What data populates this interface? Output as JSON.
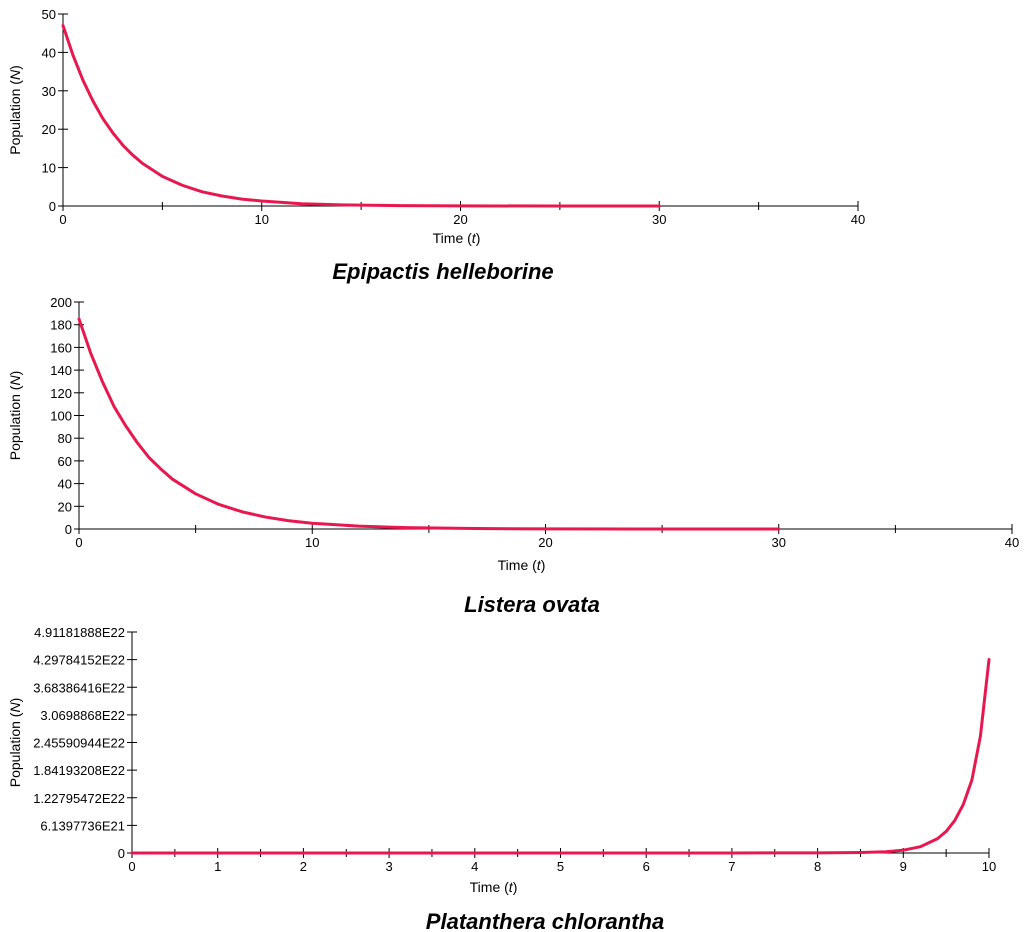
{
  "chart_data": [
    {
      "type": "line",
      "title": "Epipactis helleborine",
      "xlabel": "Time (t)",
      "xlabel_prefix": "Time (",
      "xlabel_var": "t",
      "xlabel_suffix": ")",
      "ylabel": "Population (N)",
      "ylabel_prefix": "Population (",
      "ylabel_var": "N",
      "ylabel_suffix": ")",
      "xlim": [
        0,
        40
      ],
      "ylim": [
        0,
        50
      ],
      "xticks": [
        0,
        10,
        20,
        30,
        40
      ],
      "xtick_labels": [
        "0",
        "10",
        "20",
        "30",
        "40"
      ],
      "yticks": [
        0,
        10,
        20,
        30,
        40,
        50
      ],
      "ytick_labels": [
        "0",
        "10",
        "20",
        "30",
        "40",
        "50"
      ],
      "minor_xticks": [
        5,
        15,
        25,
        35
      ],
      "grid": false,
      "color": "#e8184f",
      "series": [
        {
          "x": [
            0,
            0.5,
            1,
            1.5,
            2,
            2.5,
            3,
            3.5,
            4,
            5,
            6,
            7,
            8,
            9,
            10,
            12,
            14,
            17,
            20,
            25,
            30
          ],
          "values": [
            47,
            39.3,
            32.8,
            27.4,
            22.8,
            19.1,
            15.9,
            13.3,
            11.1,
            7.7,
            5.4,
            3.7,
            2.6,
            1.8,
            1.3,
            0.6,
            0.3,
            0.1,
            0.03,
            0,
            0
          ]
        }
      ]
    },
    {
      "type": "line",
      "title": "Listera ovata",
      "xlabel": "Time (t)",
      "xlabel_prefix": "Time (",
      "xlabel_var": "t",
      "xlabel_suffix": ")",
      "ylabel": "Population (N)",
      "ylabel_prefix": "Population (",
      "ylabel_var": "N",
      "ylabel_suffix": ")",
      "xlim": [
        0,
        40
      ],
      "ylim": [
        0,
        200
      ],
      "xticks": [
        0,
        10,
        20,
        30,
        40
      ],
      "xtick_labels": [
        "0",
        "10",
        "20",
        "30",
        "40"
      ],
      "yticks": [
        0,
        20,
        40,
        60,
        80,
        100,
        120,
        140,
        160,
        180,
        200
      ],
      "ytick_labels": [
        "0",
        "20",
        "40",
        "60",
        "80",
        "100",
        "120",
        "140",
        "160",
        "180",
        "200"
      ],
      "minor_xticks": [
        5,
        15,
        25,
        35
      ],
      "grid": false,
      "color": "#e8184f",
      "series": [
        {
          "x": [
            0,
            0.5,
            1,
            1.5,
            2,
            2.5,
            3,
            3.5,
            4,
            5,
            6,
            7,
            8,
            9,
            10,
            12,
            14,
            17,
            20,
            25,
            30
          ],
          "values": [
            185,
            155,
            130,
            108,
            91,
            76,
            63,
            53,
            44,
            31,
            21.6,
            15.1,
            10.5,
            7.3,
            5.1,
            2.5,
            1.2,
            0.4,
            0.1,
            0,
            0
          ]
        }
      ]
    },
    {
      "type": "line",
      "title": "Platanthera chlorantha",
      "xlabel": "Time (t)",
      "xlabel_prefix": "Time (",
      "xlabel_var": "t",
      "xlabel_suffix": ")",
      "ylabel": "Population (N)",
      "ylabel_prefix": "Population (",
      "ylabel_var": "N",
      "ylabel_suffix": ")",
      "xlim": [
        0,
        10
      ],
      "ylim": [
        0,
        4.91181888e+22
      ],
      "xticks": [
        0,
        1,
        2,
        3,
        4,
        5,
        6,
        7,
        8,
        9,
        10
      ],
      "xtick_labels": [
        "0",
        "1",
        "2",
        "3",
        "4",
        "5",
        "6",
        "7",
        "8",
        "9",
        "10"
      ],
      "yticks": [
        0,
        6.1397736e+21,
        1.22795472e+22,
        1.84193208e+22,
        2.45590944e+22,
        3.0698868e+22,
        3.68386416e+22,
        4.29784152e+22,
        4.91181888e+22
      ],
      "ytick_labels": [
        "0",
        "6.1397736E21",
        "1.22795472E22",
        "1.84193208E22",
        "2.45590944E22",
        "3.0698868E22",
        "3.68386416E22",
        "4.29784152E22",
        "4.91181888E22"
      ],
      "minor_xticks": [
        0.5,
        1.5,
        2.5,
        3.5,
        4.5,
        5.5,
        6.5,
        7.5,
        8.5,
        9.5
      ],
      "grid": false,
      "color": "#e8184f",
      "series": [
        {
          "x": [
            0,
            1,
            2,
            3,
            4,
            5,
            6,
            7,
            8,
            8.5,
            8.8,
            9,
            9.2,
            9.4,
            9.5,
            9.6,
            9.7,
            9.8,
            9.9,
            10
          ],
          "values": [
            0,
            0,
            0,
            0,
            0,
            0,
            0,
            1e+17,
            4e+19,
            1.2e+20,
            2.8e+20,
            6.3e+20,
            1.4e+21,
            3.2e+21,
            4.8e+21,
            7.2e+21,
            1.08e+22,
            1.62e+22,
            2.6e+22,
            4.3e+22
          ]
        }
      ]
    }
  ]
}
